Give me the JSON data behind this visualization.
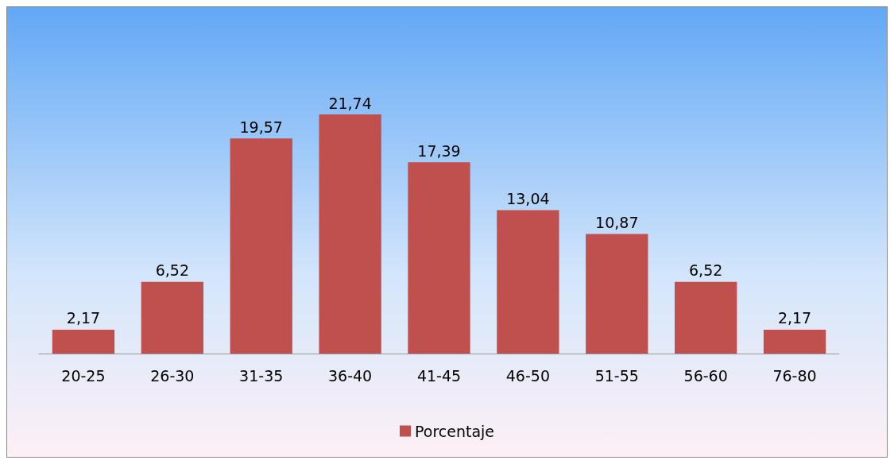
{
  "chart_data": {
    "type": "bar",
    "categories": [
      "20-25",
      "26-30",
      "31-35",
      "36-40",
      "41-45",
      "46-50",
      "51-55",
      "56-60",
      "76-80"
    ],
    "series": [
      {
        "name": "Porcentaje",
        "color": "#c0504d",
        "values": [
          2.17,
          6.52,
          19.57,
          21.74,
          17.39,
          13.04,
          10.87,
          6.52,
          2.17
        ],
        "value_labels": [
          "2,17",
          "6,52",
          "19,57",
          "21,74",
          "17,39",
          "13,04",
          "10,87",
          "6,52",
          "2,17"
        ]
      }
    ],
    "legend": "bottom",
    "grid": false
  }
}
